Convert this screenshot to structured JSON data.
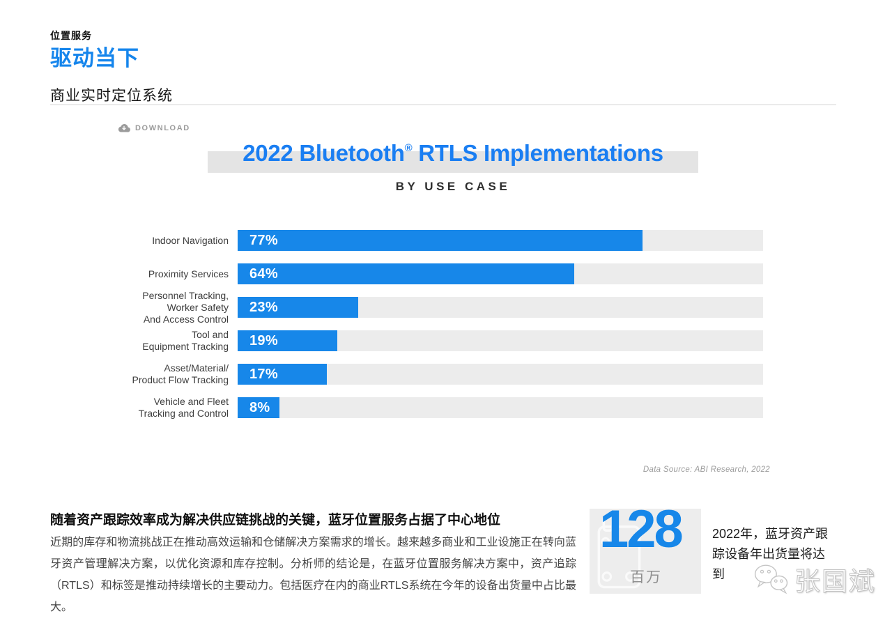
{
  "header": {
    "kicker": "位置服务",
    "title": "驱动当下",
    "section_title": "商业实时定位系统"
  },
  "toolbar": {
    "download_label": "DOWNLOAD"
  },
  "chart_data": {
    "type": "bar",
    "orientation": "horizontal",
    "title": "2022 Bluetooth® RTLS Implementations",
    "title_parts": {
      "pre": "2022 Bluetooth",
      "sup": "®",
      "post": " RTLS Implementations"
    },
    "subtitle": "BY USE CASE",
    "categories": [
      "Indoor Navigation",
      "Proximity Services",
      "Personnel Tracking,\nWorker Safety\nAnd Access Control",
      "Tool and\nEquipment Tracking",
      "Asset/Material/\nProduct Flow Tracking",
      "Vehicle and Fleet\nTracking and Control"
    ],
    "values": [
      77,
      64,
      23,
      19,
      17,
      8
    ],
    "value_labels": [
      "77%",
      "64%",
      "23%",
      "19%",
      "17%",
      "8%"
    ],
    "xlim": [
      0,
      100
    ],
    "unit": "%",
    "bar_color": "#1787e9",
    "track_color": "#ececec",
    "legend": "none",
    "grid": "off",
    "source": "Data Source: ABI Research, 2022"
  },
  "article": {
    "heading": "随着资产跟踪效率成为解决供应链挑战的关键，蓝牙位置服务占据了中心地位",
    "body": "近期的库存和物流挑战正在推动高效运输和仓储解决方案需求的增长。越来越多商业和工业设施正在转向蓝牙资产管理解决方案，以优化资源和库存控制。分析师的结论是，在蓝牙位置服务解决方案中，资产追踪（RTLS）和标签是推动持续增长的主要动力。包括医疗在内的商业RTLS系统在今年的设备出货量中占比最大。"
  },
  "stat": {
    "value": "128",
    "unit": "百万",
    "caption": "2022年，蓝牙资产跟\n踪设备年出货量将达\n到"
  },
  "watermark": {
    "text": "张国斌"
  },
  "colors": {
    "accent_blue": "#1787e9",
    "title_blue": "#1a7ef2",
    "track_gray": "#ececec",
    "band_gray": "#e4e4e4",
    "stat_box_gray": "#ededed"
  }
}
